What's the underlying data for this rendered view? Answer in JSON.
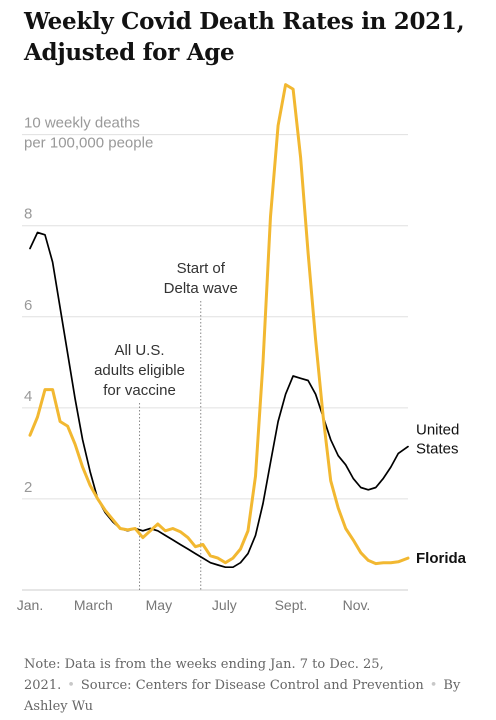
{
  "header": {
    "title": "Weekly Covid Death Rates in 2021, Adjusted for Age"
  },
  "chart_data": {
    "type": "line",
    "title": "Weekly Covid Death Rates in 2021, Adjusted for Age",
    "ylabel_lines": [
      "10 weekly deaths",
      "per 100,000 people"
    ],
    "y_ticks": [
      2,
      4,
      6,
      8
    ],
    "ylim": [
      0,
      11.2
    ],
    "xlim": [
      "2021-01-07",
      "2021-12-25"
    ],
    "x_ticks": [
      {
        "date": "2021-01-07",
        "label": "Jan."
      },
      {
        "date": "2021-03-07",
        "label": "March"
      },
      {
        "date": "2021-05-07",
        "label": "May"
      },
      {
        "date": "2021-07-07",
        "label": "July"
      },
      {
        "date": "2021-09-07",
        "label": "Sept."
      },
      {
        "date": "2021-11-07",
        "label": "Nov."
      }
    ],
    "grid": true,
    "annotations": [
      {
        "date": "2021-04-19",
        "lines": [
          "All U.S.",
          "adults eligible",
          "for vaccine"
        ]
      },
      {
        "date": "2021-06-15",
        "lines": [
          "Start of",
          "Delta wave"
        ]
      }
    ],
    "series": [
      {
        "name": "United States",
        "label_lines": [
          "United",
          "States"
        ],
        "color": "#000000",
        "points": [
          [
            "2021-01-07",
            7.5
          ],
          [
            "2021-01-14",
            7.85
          ],
          [
            "2021-01-21",
            7.8
          ],
          [
            "2021-01-28",
            7.2
          ],
          [
            "2021-02-04",
            6.2
          ],
          [
            "2021-02-11",
            5.2
          ],
          [
            "2021-02-18",
            4.2
          ],
          [
            "2021-02-25",
            3.3
          ],
          [
            "2021-03-04",
            2.6
          ],
          [
            "2021-03-11",
            2.0
          ],
          [
            "2021-03-18",
            1.7
          ],
          [
            "2021-03-25",
            1.5
          ],
          [
            "2021-04-01",
            1.35
          ],
          [
            "2021-04-08",
            1.3
          ],
          [
            "2021-04-15",
            1.35
          ],
          [
            "2021-04-22",
            1.3
          ],
          [
            "2021-04-29",
            1.35
          ],
          [
            "2021-05-06",
            1.3
          ],
          [
            "2021-05-13",
            1.2
          ],
          [
            "2021-05-20",
            1.1
          ],
          [
            "2021-05-27",
            1.0
          ],
          [
            "2021-06-03",
            0.9
          ],
          [
            "2021-06-10",
            0.8
          ],
          [
            "2021-06-17",
            0.7
          ],
          [
            "2021-06-24",
            0.6
          ],
          [
            "2021-07-01",
            0.55
          ],
          [
            "2021-07-08",
            0.5
          ],
          [
            "2021-07-15",
            0.5
          ],
          [
            "2021-07-22",
            0.6
          ],
          [
            "2021-07-29",
            0.8
          ],
          [
            "2021-08-05",
            1.2
          ],
          [
            "2021-08-12",
            1.9
          ],
          [
            "2021-08-19",
            2.8
          ],
          [
            "2021-08-26",
            3.7
          ],
          [
            "2021-09-02",
            4.3
          ],
          [
            "2021-09-09",
            4.7
          ],
          [
            "2021-09-16",
            4.65
          ],
          [
            "2021-09-23",
            4.6
          ],
          [
            "2021-09-30",
            4.3
          ],
          [
            "2021-10-07",
            3.8
          ],
          [
            "2021-10-14",
            3.3
          ],
          [
            "2021-10-21",
            2.95
          ],
          [
            "2021-10-28",
            2.75
          ],
          [
            "2021-11-04",
            2.45
          ],
          [
            "2021-11-11",
            2.25
          ],
          [
            "2021-11-18",
            2.2
          ],
          [
            "2021-11-25",
            2.25
          ],
          [
            "2021-12-02",
            2.45
          ],
          [
            "2021-12-09",
            2.7
          ],
          [
            "2021-12-16",
            3.0
          ],
          [
            "2021-12-25",
            3.15
          ]
        ]
      },
      {
        "name": "Florida",
        "label_lines": [
          "Florida"
        ],
        "color": "#f2b831",
        "points": [
          [
            "2021-01-07",
            3.4
          ],
          [
            "2021-01-14",
            3.8
          ],
          [
            "2021-01-21",
            4.4
          ],
          [
            "2021-01-28",
            4.4
          ],
          [
            "2021-02-04",
            3.7
          ],
          [
            "2021-02-11",
            3.6
          ],
          [
            "2021-02-18",
            3.2
          ],
          [
            "2021-02-25",
            2.7
          ],
          [
            "2021-03-04",
            2.3
          ],
          [
            "2021-03-11",
            2.0
          ],
          [
            "2021-03-18",
            1.75
          ],
          [
            "2021-03-25",
            1.55
          ],
          [
            "2021-04-01",
            1.35
          ],
          [
            "2021-04-08",
            1.32
          ],
          [
            "2021-04-15",
            1.35
          ],
          [
            "2021-04-22",
            1.15
          ],
          [
            "2021-04-29",
            1.3
          ],
          [
            "2021-05-06",
            1.45
          ],
          [
            "2021-05-13",
            1.3
          ],
          [
            "2021-05-20",
            1.35
          ],
          [
            "2021-05-27",
            1.28
          ],
          [
            "2021-06-03",
            1.15
          ],
          [
            "2021-06-10",
            0.95
          ],
          [
            "2021-06-17",
            1.0
          ],
          [
            "2021-06-24",
            0.75
          ],
          [
            "2021-07-01",
            0.7
          ],
          [
            "2021-07-08",
            0.6
          ],
          [
            "2021-07-15",
            0.7
          ],
          [
            "2021-07-22",
            0.9
          ],
          [
            "2021-07-29",
            1.3
          ],
          [
            "2021-08-05",
            2.5
          ],
          [
            "2021-08-12",
            5.0
          ],
          [
            "2021-08-19",
            8.2
          ],
          [
            "2021-08-26",
            10.2
          ],
          [
            "2021-09-02",
            11.1
          ],
          [
            "2021-09-09",
            11.0
          ],
          [
            "2021-09-16",
            9.5
          ],
          [
            "2021-09-23",
            7.4
          ],
          [
            "2021-09-30",
            5.5
          ],
          [
            "2021-10-07",
            3.8
          ],
          [
            "2021-10-14",
            2.4
          ],
          [
            "2021-10-21",
            1.8
          ],
          [
            "2021-10-28",
            1.35
          ],
          [
            "2021-11-04",
            1.1
          ],
          [
            "2021-11-11",
            0.82
          ],
          [
            "2021-11-18",
            0.65
          ],
          [
            "2021-11-25",
            0.58
          ],
          [
            "2021-12-02",
            0.6
          ],
          [
            "2021-12-09",
            0.6
          ],
          [
            "2021-12-16",
            0.62
          ],
          [
            "2021-12-25",
            0.7
          ]
        ]
      }
    ]
  },
  "footer": {
    "note": "Note: Data is from the weeks ending Jan. 7 to Dec. 25, 2021.",
    "source": "Source: Centers for Disease Control and Prevention",
    "byline": "By Ashley Wu"
  }
}
